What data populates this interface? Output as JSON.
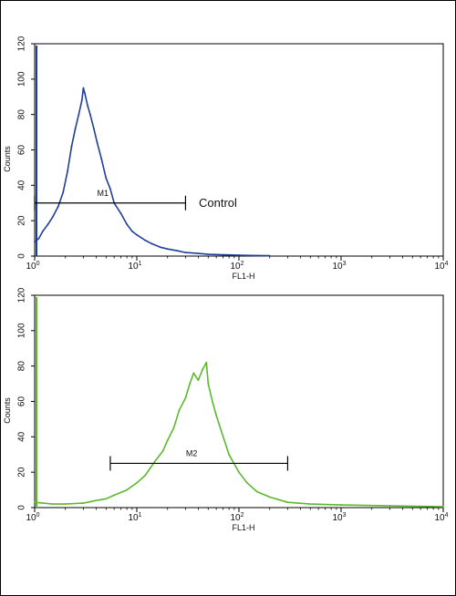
{
  "chart_data": [
    {
      "type": "line",
      "title": "",
      "xlabel": "FL1-H",
      "ylabel": "Counts",
      "x_scale": "log",
      "xlim": [
        1,
        10000
      ],
      "ylim": [
        0,
        120
      ],
      "x_ticks": [
        {
          "base": "10",
          "exp": "0"
        },
        {
          "base": "10",
          "exp": "1"
        },
        {
          "base": "10",
          "exp": "2"
        },
        {
          "base": "10",
          "exp": "3"
        },
        {
          "base": "10",
          "exp": "4"
        }
      ],
      "y_ticks": [
        "0",
        "20",
        "40",
        "60",
        "80",
        "100",
        "120"
      ],
      "annotation": "Control",
      "gate": {
        "label": "M1",
        "x_from": 1,
        "x_to": 30,
        "y": 30
      },
      "series": [
        {
          "color": "#1f3f9a",
          "x": [
            1.0,
            1.1,
            1.2,
            1.35,
            1.5,
            1.7,
            1.9,
            2.1,
            2.3,
            2.5,
            2.7,
            2.9,
            3.0,
            3.1,
            3.3,
            3.5,
            3.8,
            4.1,
            4.5,
            5.0,
            5.5,
            6.0,
            7.0,
            8.0,
            9.0,
            10.0,
            12.0,
            14.0,
            17.0,
            20.0,
            25.0,
            30.0,
            40.0,
            50.0,
            70.0,
            100.0,
            150.0,
            200.0
          ],
          "y": [
            8,
            10,
            14,
            18,
            22,
            28,
            36,
            48,
            62,
            72,
            80,
            88,
            95,
            92,
            85,
            80,
            72,
            64,
            55,
            44,
            38,
            30,
            24,
            18,
            14,
            12,
            9,
            7,
            5,
            4,
            3,
            2,
            1.5,
            1,
            0.7,
            0.5,
            0.3,
            0.2
          ]
        }
      ]
    },
    {
      "type": "line",
      "title": "",
      "xlabel": "FL1-H",
      "ylabel": "Counts",
      "x_scale": "log",
      "xlim": [
        1,
        10000
      ],
      "ylim": [
        0,
        120
      ],
      "x_ticks": [
        {
          "base": "10",
          "exp": "0"
        },
        {
          "base": "10",
          "exp": "1"
        },
        {
          "base": "10",
          "exp": "2"
        },
        {
          "base": "10",
          "exp": "3"
        },
        {
          "base": "10",
          "exp": "4"
        }
      ],
      "y_ticks": [
        "0",
        "20",
        "40",
        "60",
        "80",
        "100",
        "120"
      ],
      "gate": {
        "label": "M2",
        "x_from": 5.5,
        "x_to": 300,
        "y": 25
      },
      "series": [
        {
          "color": "#5cb82c",
          "x": [
            1.0,
            1.5,
            2.0,
            3.0,
            4.0,
            5.0,
            6.0,
            8.0,
            10.0,
            12.0,
            15.0,
            18.0,
            20.0,
            23.0,
            26.0,
            30.0,
            33.0,
            36.0,
            40.0,
            44.0,
            48.0,
            50.0,
            55.0,
            60.0,
            70.0,
            80.0,
            100.0,
            120.0,
            150.0,
            200.0,
            300.0,
            500.0,
            1000.0,
            3000.0,
            10000.0
          ],
          "y": [
            3,
            2,
            2,
            2.5,
            4,
            5,
            7,
            10,
            14,
            18,
            26,
            32,
            38,
            45,
            55,
            62,
            70,
            76,
            72,
            78,
            82,
            70,
            60,
            52,
            40,
            30,
            20,
            14,
            9,
            6,
            3,
            2,
            1.5,
            1,
            0.5
          ]
        }
      ]
    }
  ]
}
